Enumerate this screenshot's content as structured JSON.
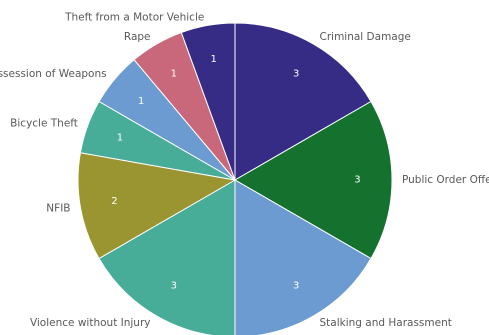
{
  "chart_data": {
    "type": "pie",
    "title": "",
    "slices": [
      {
        "label": "Criminal Damage",
        "value": 3,
        "color": "#362c86"
      },
      {
        "label": "Public Order Offences",
        "value": 3,
        "color": "#15722e"
      },
      {
        "label": "Stalking and Harassment",
        "value": 3,
        "color": "#6b9bd0"
      },
      {
        "label": "Violence without Injury",
        "value": 3,
        "color": "#47ac98"
      },
      {
        "label": "NFIB",
        "value": 2,
        "color": "#9a9531"
      },
      {
        "label": "Bicycle Theft",
        "value": 1,
        "color": "#47ac98"
      },
      {
        "label": "Possession of Weapons",
        "value": 1,
        "color": "#6b9bd0"
      },
      {
        "label": "Rape",
        "value": 1,
        "color": "#c9687a"
      },
      {
        "label": "Theft from a Motor Vehicle",
        "value": 1,
        "color": "#362c86"
      }
    ]
  }
}
